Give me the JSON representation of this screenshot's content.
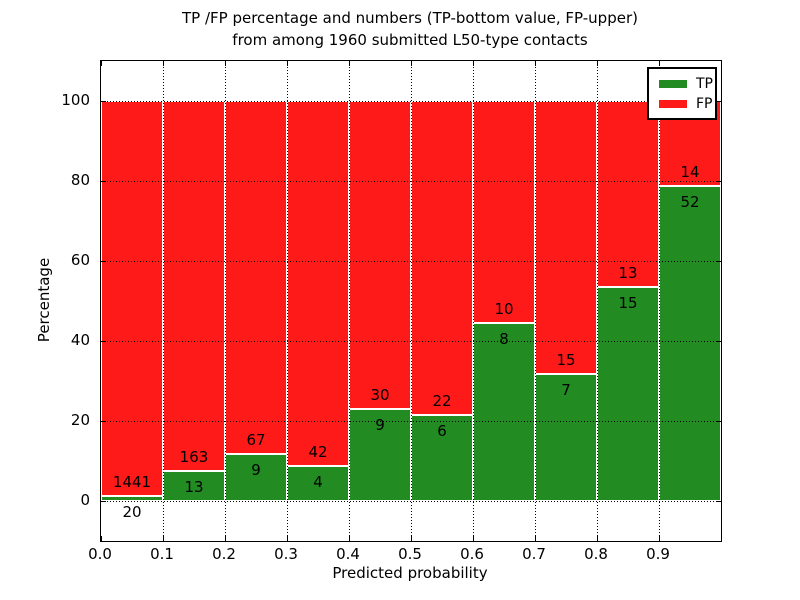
{
  "chart_data": {
    "type": "bar",
    "stacked": true,
    "normalized_to_percent": true,
    "title_line1": "TP /FP percentage and numbers (TP-bottom value, FP-upper)",
    "title_line2": "from among 1960 submitted L50-type contacts",
    "xlabel": "Predicted probability",
    "ylabel": "Percentage",
    "xlim": [
      0.0,
      1.0
    ],
    "ylim": [
      -10,
      110
    ],
    "grid": "dotted, on top of bars",
    "xticks": [
      "0.0",
      "0.1",
      "0.2",
      "0.3",
      "0.4",
      "0.5",
      "0.6",
      "0.7",
      "0.8",
      "0.9"
    ],
    "yticks": [
      0,
      20,
      40,
      60,
      80,
      100
    ],
    "colors": {
      "tp": "#228B22",
      "fp": "#FF1A1A",
      "bar_edge": "#FFFFFF"
    },
    "legend": {
      "position": "upper right",
      "entries": [
        {
          "label": "TP",
          "color": "#228B22"
        },
        {
          "label": "FP",
          "color": "#FF1A1A"
        }
      ]
    },
    "bins": [
      {
        "x0": 0.0,
        "x1": 0.1,
        "tp": 20,
        "fp": 1441
      },
      {
        "x0": 0.1,
        "x1": 0.2,
        "tp": 13,
        "fp": 163
      },
      {
        "x0": 0.2,
        "x1": 0.3,
        "tp": 9,
        "fp": 67
      },
      {
        "x0": 0.3,
        "x1": 0.4,
        "tp": 4,
        "fp": 42
      },
      {
        "x0": 0.4,
        "x1": 0.5,
        "tp": 9,
        "fp": 30
      },
      {
        "x0": 0.5,
        "x1": 0.6,
        "tp": 6,
        "fp": 22
      },
      {
        "x0": 0.6,
        "x1": 0.7,
        "tp": 8,
        "fp": 10
      },
      {
        "x0": 0.7,
        "x1": 0.8,
        "tp": 7,
        "fp": 15
      },
      {
        "x0": 0.8,
        "x1": 0.9,
        "tp": 15,
        "fp": 13
      },
      {
        "x0": 0.9,
        "x1": 1.0,
        "tp": 52,
        "fp": 14
      }
    ]
  }
}
